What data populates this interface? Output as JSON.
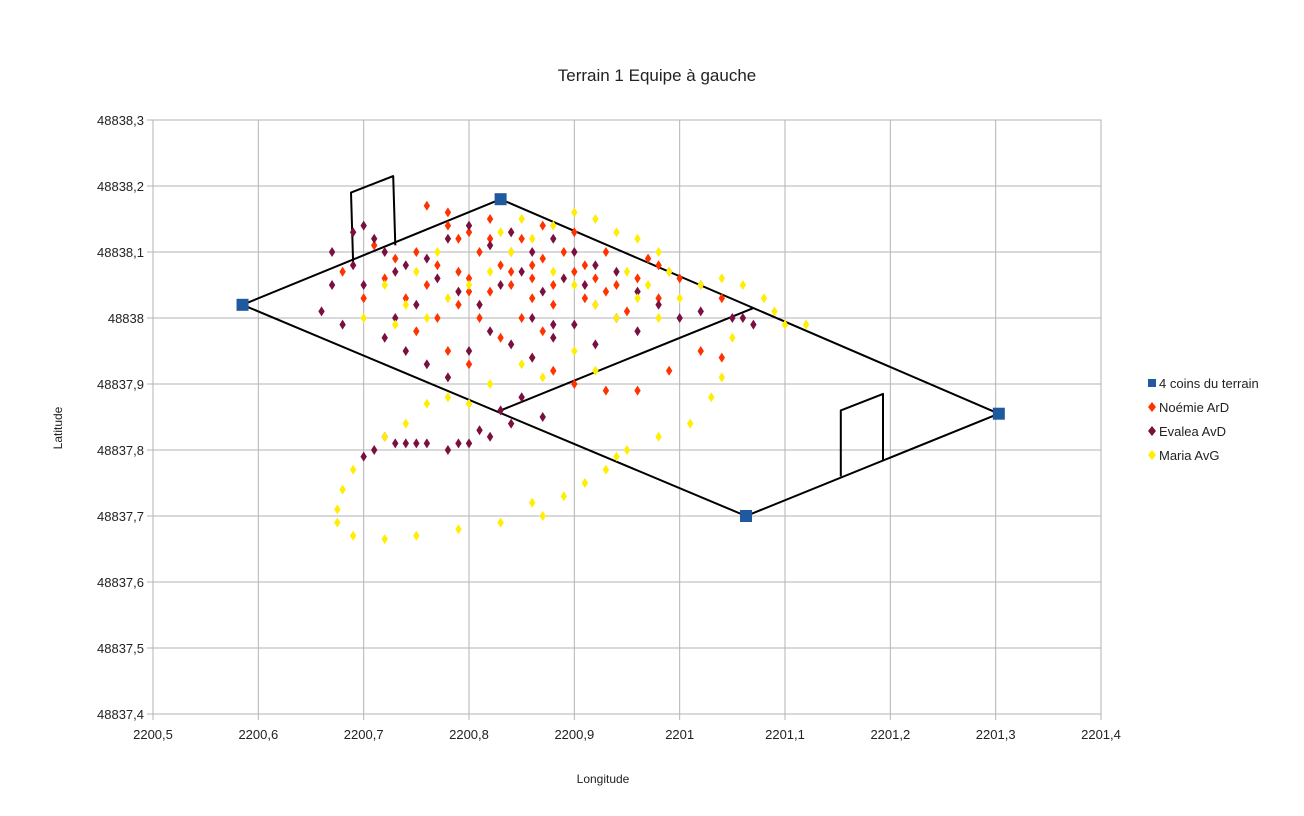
{
  "chart_data": {
    "type": "scatter",
    "title": "Terrain 1 Equipe à gauche",
    "xlabel": "Longitude",
    "ylabel": "Latitude",
    "xlim": [
      2200.5,
      2201.4
    ],
    "ylim": [
      48837.4,
      48838.3
    ],
    "grid": true,
    "legend_position": "right",
    "x_ticks": [
      "2200,5",
      "2200,6",
      "2200,7",
      "2200,8",
      "2200,9",
      "2201",
      "2201,1",
      "2201,2",
      "2201,3",
      "2201,4"
    ],
    "y_ticks": [
      "48837,4",
      "48837,5",
      "48837,6",
      "48837,7",
      "48837,8",
      "48837,9",
      "48838",
      "48838,1",
      "48838,2",
      "48838,3"
    ],
    "series": [
      {
        "name": "4 coins du terrain",
        "marker": "square",
        "color": "#1f5a9e",
        "points": [
          [
            2200.585,
            48838.02
          ],
          [
            2200.83,
            48838.18
          ],
          [
            2201.063,
            48837.7
          ],
          [
            2201.303,
            48837.855
          ]
        ]
      },
      {
        "name": "Noémie ArD",
        "marker": "diamond",
        "color": "#ff3300",
        "points": [
          [
            2200.76,
            48838.17
          ],
          [
            2200.78,
            48838.16
          ],
          [
            2200.8,
            48838.13
          ],
          [
            2200.82,
            48838.12
          ],
          [
            2200.84,
            48838.1
          ],
          [
            2200.86,
            48838.08
          ],
          [
            2200.79,
            48838.12
          ],
          [
            2200.81,
            48838.1
          ],
          [
            2200.77,
            48838.08
          ],
          [
            2200.75,
            48838.1
          ],
          [
            2200.73,
            48838.09
          ],
          [
            2200.8,
            48838.06
          ],
          [
            2200.82,
            48838.04
          ],
          [
            2200.84,
            48838.05
          ],
          [
            2200.86,
            48838.03
          ],
          [
            2200.88,
            48838.05
          ],
          [
            2200.9,
            48838.07
          ],
          [
            2200.92,
            48838.06
          ],
          [
            2200.94,
            48838.05
          ],
          [
            2200.96,
            48838.06
          ],
          [
            2200.98,
            48838.08
          ],
          [
            2201.0,
            48838.06
          ],
          [
            2201.02,
            48838.05
          ],
          [
            2201.04,
            48838.03
          ],
          [
            2200.85,
            48838.0
          ],
          [
            2200.87,
            48837.98
          ],
          [
            2200.83,
            48837.97
          ],
          [
            2200.81,
            48838.0
          ],
          [
            2200.79,
            48838.02
          ],
          [
            2200.77,
            48838.0
          ],
          [
            2200.75,
            48837.98
          ],
          [
            2200.78,
            48837.95
          ],
          [
            2200.8,
            48837.93
          ],
          [
            2200.86,
            48837.94
          ],
          [
            2200.88,
            48837.92
          ],
          [
            2200.9,
            48837.9
          ],
          [
            2200.93,
            48837.89
          ],
          [
            2200.96,
            48837.89
          ],
          [
            2200.99,
            48837.92
          ],
          [
            2201.02,
            48837.95
          ],
          [
            2201.04,
            48837.94
          ],
          [
            2200.85,
            48838.12
          ],
          [
            2200.87,
            48838.14
          ],
          [
            2200.89,
            48838.1
          ],
          [
            2200.91,
            48838.08
          ],
          [
            2200.93,
            48838.1
          ],
          [
            2200.83,
            48838.08
          ],
          [
            2200.79,
            48838.07
          ],
          [
            2200.76,
            48838.05
          ],
          [
            2200.74,
            48838.03
          ],
          [
            2200.72,
            48838.06
          ],
          [
            2200.88,
            48838.02
          ],
          [
            2200.92,
            48838.02
          ],
          [
            2200.95,
            48838.01
          ],
          [
            2200.98,
            48838.03
          ],
          [
            2200.97,
            48838.09
          ],
          [
            2200.99,
            48838.07
          ],
          [
            2200.71,
            48838.11
          ],
          [
            2200.68,
            48838.07
          ],
          [
            2200.7,
            48838.03
          ],
          [
            2200.82,
            48838.15
          ],
          [
            2200.84,
            48838.13
          ],
          [
            2200.78,
            48838.14
          ],
          [
            2200.9,
            48838.13
          ],
          [
            2200.86,
            48838.06
          ],
          [
            2200.84,
            48838.07
          ],
          [
            2200.8,
            48838.04
          ],
          [
            2200.87,
            48838.09
          ],
          [
            2200.93,
            48838.04
          ],
          [
            2200.91,
            48838.03
          ]
        ]
      },
      {
        "name": "Evalea AvD",
        "marker": "diamond",
        "color": "#7a1040",
        "points": [
          [
            2200.67,
            48838.1
          ],
          [
            2200.69,
            48838.13
          ],
          [
            2200.7,
            48838.14
          ],
          [
            2200.71,
            48838.12
          ],
          [
            2200.72,
            48838.1
          ],
          [
            2200.73,
            48838.07
          ],
          [
            2200.74,
            48838.08
          ],
          [
            2200.76,
            48838.09
          ],
          [
            2200.78,
            48838.12
          ],
          [
            2200.8,
            48838.14
          ],
          [
            2200.82,
            48838.11
          ],
          [
            2200.84,
            48838.13
          ],
          [
            2200.86,
            48838.1
          ],
          [
            2200.88,
            48838.12
          ],
          [
            2200.9,
            48838.1
          ],
          [
            2200.92,
            48838.08
          ],
          [
            2200.94,
            48838.07
          ],
          [
            2200.96,
            48838.04
          ],
          [
            2200.98,
            48838.02
          ],
          [
            2201.0,
            48838.0
          ],
          [
            2201.02,
            48838.01
          ],
          [
            2201.05,
            48838.0
          ],
          [
            2201.07,
            48837.99
          ],
          [
            2200.66,
            48838.01
          ],
          [
            2200.68,
            48837.99
          ],
          [
            2200.7,
            48838.05
          ],
          [
            2200.72,
            48837.97
          ],
          [
            2200.74,
            48837.95
          ],
          [
            2200.76,
            48837.93
          ],
          [
            2200.78,
            48837.91
          ],
          [
            2200.8,
            48837.95
          ],
          [
            2200.82,
            48837.98
          ],
          [
            2200.84,
            48837.96
          ],
          [
            2200.86,
            48837.94
          ],
          [
            2200.88,
            48837.97
          ],
          [
            2200.9,
            48837.99
          ],
          [
            2200.92,
            48837.96
          ],
          [
            2200.94,
            48838.0
          ],
          [
            2200.96,
            48837.98
          ],
          [
            2200.83,
            48837.86
          ],
          [
            2200.85,
            48837.88
          ],
          [
            2200.87,
            48837.85
          ],
          [
            2200.84,
            48837.84
          ],
          [
            2200.82,
            48837.82
          ],
          [
            2200.8,
            48837.81
          ],
          [
            2200.78,
            48837.8
          ],
          [
            2200.76,
            48837.81
          ],
          [
            2200.74,
            48837.81
          ],
          [
            2200.72,
            48837.82
          ],
          [
            2200.7,
            48837.79
          ],
          [
            2200.71,
            48837.8
          ],
          [
            2200.73,
            48837.81
          ],
          [
            2200.75,
            48837.81
          ],
          [
            2200.79,
            48837.81
          ],
          [
            2200.81,
            48837.83
          ],
          [
            2200.77,
            48838.06
          ],
          [
            2200.79,
            48838.04
          ],
          [
            2200.81,
            48838.02
          ],
          [
            2200.83,
            48838.05
          ],
          [
            2200.85,
            48838.07
          ],
          [
            2200.87,
            48838.04
          ],
          [
            2200.89,
            48838.06
          ],
          [
            2200.91,
            48838.05
          ],
          [
            2200.67,
            48838.05
          ],
          [
            2200.69,
            48838.08
          ],
          [
            2200.75,
            48838.02
          ],
          [
            2200.73,
            48838.0
          ],
          [
            2200.86,
            48838.0
          ],
          [
            2200.88,
            48837.99
          ],
          [
            2201.06,
            48838.0
          ]
        ]
      },
      {
        "name": "Maria AvG",
        "marker": "diamond",
        "color": "#ffee00",
        "points": [
          [
            2200.9,
            48838.16
          ],
          [
            2200.92,
            48838.15
          ],
          [
            2200.94,
            48838.13
          ],
          [
            2200.96,
            48838.12
          ],
          [
            2200.98,
            48838.1
          ],
          [
            2200.88,
            48838.14
          ],
          [
            2200.86,
            48838.12
          ],
          [
            2200.84,
            48838.1
          ],
          [
            2200.82,
            48838.07
          ],
          [
            2200.8,
            48838.05
          ],
          [
            2200.78,
            48838.03
          ],
          [
            2200.76,
            48838.0
          ],
          [
            2200.74,
            48838.02
          ],
          [
            2200.72,
            48838.05
          ],
          [
            2200.75,
            48838.07
          ],
          [
            2200.77,
            48838.1
          ],
          [
            2200.92,
            48838.02
          ],
          [
            2200.94,
            48838.0
          ],
          [
            2200.96,
            48838.03
          ],
          [
            2200.98,
            48838.0
          ],
          [
            2201.0,
            48838.03
          ],
          [
            2201.02,
            48838.05
          ],
          [
            2201.04,
            48838.06
          ],
          [
            2201.06,
            48838.05
          ],
          [
            2201.08,
            48838.03
          ],
          [
            2201.09,
            48838.01
          ],
          [
            2201.1,
            48837.99
          ],
          [
            2201.12,
            48837.99
          ],
          [
            2200.9,
            48837.95
          ],
          [
            2200.92,
            48837.92
          ],
          [
            2200.87,
            48837.91
          ],
          [
            2200.85,
            48837.93
          ],
          [
            2200.82,
            48837.9
          ],
          [
            2200.8,
            48837.87
          ],
          [
            2200.78,
            48837.88
          ],
          [
            2201.04,
            48837.91
          ],
          [
            2201.03,
            48837.88
          ],
          [
            2201.01,
            48837.84
          ],
          [
            2200.98,
            48837.82
          ],
          [
            2200.95,
            48837.8
          ],
          [
            2200.93,
            48837.77
          ],
          [
            2200.91,
            48837.75
          ],
          [
            2200.89,
            48837.73
          ],
          [
            2200.87,
            48837.7
          ],
          [
            2200.83,
            48837.69
          ],
          [
            2200.79,
            48837.68
          ],
          [
            2200.75,
            48837.67
          ],
          [
            2200.72,
            48837.665
          ],
          [
            2200.69,
            48837.67
          ],
          [
            2200.675,
            48837.69
          ],
          [
            2200.675,
            48837.71
          ],
          [
            2200.68,
            48837.74
          ],
          [
            2200.69,
            48837.77
          ],
          [
            2200.72,
            48837.82
          ],
          [
            2200.74,
            48837.84
          ],
          [
            2200.76,
            48837.87
          ],
          [
            2200.7,
            48838.0
          ],
          [
            2200.73,
            48837.99
          ],
          [
            2200.83,
            48838.13
          ],
          [
            2200.85,
            48838.15
          ],
          [
            2200.88,
            48838.07
          ],
          [
            2200.9,
            48838.05
          ],
          [
            2200.95,
            48838.07
          ],
          [
            2200.97,
            48838.05
          ],
          [
            2200.99,
            48838.07
          ],
          [
            2201.05,
            48837.97
          ],
          [
            2200.86,
            48837.72
          ],
          [
            2200.94,
            48837.79
          ]
        ]
      }
    ],
    "field_shapes": [
      {
        "kind": "field-outline",
        "points": [
          [
            2200.585,
            48838.02
          ],
          [
            2200.83,
            48838.18
          ],
          [
            2201.303,
            48837.855
          ],
          [
            2201.063,
            48837.7
          ],
          [
            2200.585,
            48838.02
          ]
        ]
      },
      {
        "kind": "center-line",
        "points": [
          [
            2200.83,
            48837.86
          ],
          [
            2201.07,
            48838.015
          ]
        ]
      },
      {
        "kind": "goal-left",
        "points": [
          [
            2200.69,
            48838.085
          ],
          [
            2200.688,
            48838.19
          ],
          [
            2200.728,
            48838.215
          ],
          [
            2200.73,
            48838.11
          ]
        ]
      },
      {
        "kind": "goal-right",
        "points": [
          [
            2201.153,
            48837.76
          ],
          [
            2201.153,
            48837.86
          ],
          [
            2201.193,
            48837.885
          ],
          [
            2201.193,
            48837.785
          ]
        ]
      }
    ]
  }
}
